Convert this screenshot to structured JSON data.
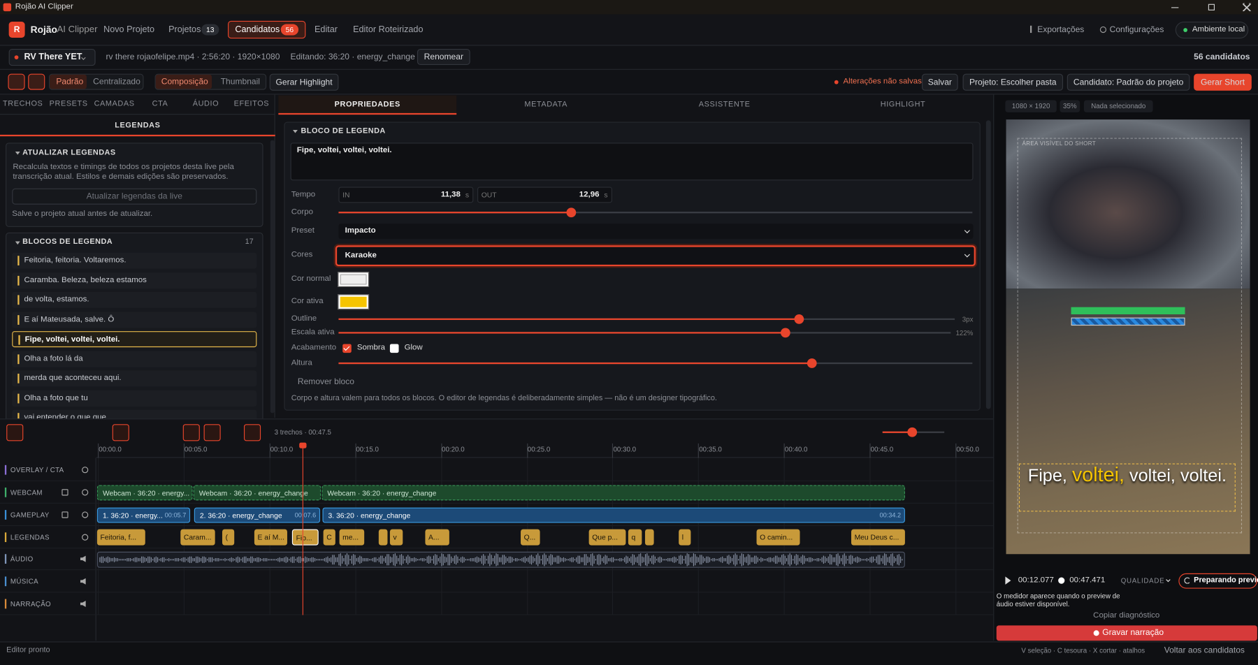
{
  "window": {
    "title": "Rojão AI Clipper"
  },
  "nav": {
    "logo": "R",
    "brand": "Rojão",
    "product": "AI Clipper",
    "items": [
      {
        "label": "Novo Projeto"
      },
      {
        "label": "Projetos",
        "badge": "13"
      },
      {
        "label": "Candidatos",
        "badge": "56",
        "active": true
      },
      {
        "label": "Editar"
      },
      {
        "label": "Editor Roteirizado"
      }
    ],
    "exports": "Exportações",
    "settings": "Configurações",
    "env": "Ambiente local"
  },
  "project": {
    "name": "RV There YET",
    "file": "rv there rojaofelipe.mp4 · 2:56:20 · 1920×1080",
    "editing": "Editando: 36:20 · energy_change",
    "rename": "Renomear",
    "count": "56 candidatos"
  },
  "toolbar": {
    "layouts": [
      "Padrão",
      "Centralizado"
    ],
    "modes": [
      "Composição",
      "Thumbnail"
    ],
    "highlight": "Gerar Highlight",
    "unsaved": "Alterações não salvas",
    "save": "Salvar",
    "project_folder": "Projeto: Escolher pasta",
    "candidate": "Candidato: Padrão do projeto",
    "generate": "Gerar Short"
  },
  "left": {
    "tabs": [
      "TRECHOS",
      "PRESETS",
      "CAMADAS",
      "CTA",
      "ÁUDIO",
      "EFEITOS"
    ],
    "subtab": "LEGENDAS",
    "update": {
      "title": "ATUALIZAR LEGENDAS",
      "description": "Recalcula textos e timings de todos os projetos desta live pela transcrição atual. Estilos e demais edições são preservados.",
      "button": "Atualizar legendas da live",
      "note": "Salve o projeto atual antes de atualizar."
    },
    "blocks": {
      "title": "BLOCOS DE LEGENDA",
      "count": "17",
      "selected": 4,
      "items": [
        "Feitoria, feitoria. Voltaremos.",
        "Caramba. Beleza, beleza estamos",
        "de volta, estamos.",
        "E aí Mateusada, salve. Ô",
        "Fipe, voltei, voltei, voltei.",
        "Olha a foto lá da",
        "merda que aconteceu aqui.",
        "Olha a foto que tu",
        "vai entender o que que"
      ]
    }
  },
  "editor": {
    "tabs": [
      "PROPRIEDADES",
      "METADATA",
      "ASSISTENTE",
      "HIGHLIGHT"
    ],
    "section": "BLOCO DE LEGENDA",
    "text": "Fipe, voltei, voltei, voltei.",
    "time": {
      "label": "Tempo",
      "in_label": "IN",
      "in": "11,38",
      "out_label": "OUT",
      "out": "12,96",
      "unit": "s"
    },
    "body": "Corpo",
    "preset": {
      "label": "Preset",
      "value": "Impacto"
    },
    "colors": {
      "label": "Cores",
      "value": "Karaoke"
    },
    "normal_color": {
      "label": "Cor normal",
      "color": "#eeeeee"
    },
    "active_color": {
      "label": "Cor ativa",
      "color": "#f5c400"
    },
    "outline": {
      "label": "Outline",
      "value": "3px"
    },
    "active_scale": {
      "label": "Escala ativa",
      "value": "122%"
    },
    "finish": {
      "label": "Acabamento",
      "shadow": "Sombra",
      "shadow_checked": true,
      "glow": "Glow",
      "glow_checked": false
    },
    "height": "Altura",
    "remove": "Remover bloco",
    "note": "Corpo e altura valem para todos os blocos. O editor de legendas é deliberadamente simples — não é um designer tipográfico."
  },
  "preview": {
    "size": "1080 × 1920",
    "zoom": "35%",
    "selection": "Nada selecionado",
    "area": "ÁREA VISÍVEL DO SHORT",
    "caption_words": [
      "Fipe,",
      "voltei,",
      "voltei,",
      "voltei."
    ],
    "active_word": 1,
    "current": "00:12.077",
    "duration": "00:47.471",
    "quality": "QUALIDADE",
    "status": "Preparando preview",
    "meter_note": "O medidor aparece quando o preview de áudio estiver disponível.",
    "copy": "Copiar diagnóstico",
    "record": "Gravar narração"
  },
  "timeline": {
    "summary": "3 trechos · 00:47.5",
    "ruler": [
      "00:00.0",
      "00:05.0",
      "00:10.0",
      "00:15.0",
      "00:20.0",
      "00:25.0",
      "00:30.0",
      "00:35.0",
      "00:40.0",
      "00:45.0",
      "00:50.0"
    ],
    "tracks": [
      {
        "name": "OVERLAY / CTA",
        "color": "#8b6fd6"
      },
      {
        "name": "WEBCAM",
        "color": "#3fae6a"
      },
      {
        "name": "GAMEPLAY",
        "color": "#3a8fd8"
      },
      {
        "name": "LEGENDAS",
        "color": "#d9a93a"
      },
      {
        "name": "ÁUDIO",
        "color": "#7f95b8"
      },
      {
        "name": "MÚSICA",
        "color": "#4a8fd0"
      },
      {
        "name": "NARRAÇÃO",
        "color": "#d98a3a"
      }
    ],
    "webcam_clips": [
      "Webcam · 36:20 · energy...",
      "Webcam · 36:20 · energy_change",
      "Webcam · 36:20 · energy_change"
    ],
    "gameplay_clips": [
      {
        "label": "1. 36:20 · energy...",
        "end": "00:05.7"
      },
      {
        "label": "2. 36:20 · energy_change",
        "end": "00:07.6"
      },
      {
        "label": "3. 36:20 · energy_change",
        "end": "00:34.2"
      }
    ],
    "caption_clips": [
      "Feitoria, f...",
      "Caram...",
      "(",
      "E aí M...",
      "Fip...",
      "C",
      "me...",
      "v",
      "A...",
      "Q...",
      "Que p...",
      "q",
      "l",
      "O camin...",
      "Meu Deus c..."
    ]
  },
  "status": {
    "left": "Editor pronto",
    "shortcuts": "V seleção · C tesoura · X cortar · atalhos",
    "back": "Voltar aos candidatos"
  }
}
